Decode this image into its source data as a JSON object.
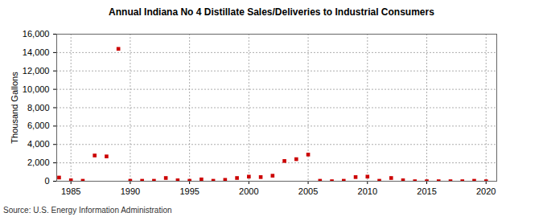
{
  "chart_data": {
    "type": "scatter",
    "title": "Annual Indiana No 4 Distillate Sales/Deliveries to Industrial Consumers",
    "source": "Source: U.S. Energy Information Administration",
    "ylabel": "Thousand Gallons",
    "x": [
      1984,
      1985,
      1986,
      1987,
      1988,
      1989,
      1990,
      1991,
      1992,
      1993,
      1994,
      1995,
      1996,
      1997,
      1998,
      1999,
      2000,
      2001,
      2002,
      2003,
      2004,
      2005,
      2006,
      2007,
      2008,
      2009,
      2010,
      2011,
      2012,
      2013,
      2014,
      2015,
      2016,
      2017,
      2018,
      2019,
      2020
    ],
    "values": [
      400,
      100,
      50,
      2800,
      2700,
      14400,
      50,
      50,
      50,
      350,
      100,
      50,
      200,
      50,
      150,
      350,
      500,
      450,
      600,
      2200,
      2400,
      2900,
      50,
      0,
      50,
      450,
      500,
      50,
      350,
      100,
      0,
      0,
      0,
      0,
      0,
      50,
      0
    ],
    "color": "#cc0000",
    "marker": "square",
    "grid": true,
    "xlim": [
      1983.8,
      2020.9
    ],
    "xticks": [
      1985,
      1990,
      1995,
      2000,
      2005,
      2010,
      2015,
      2020
    ],
    "ylim": [
      0,
      16000
    ],
    "yticks": [
      0,
      {
        "value": 2000,
        "label": "2,000"
      },
      {
        "value": 4000,
        "label": "4,000"
      },
      {
        "value": 6000,
        "label": "6,000"
      },
      {
        "value": 8000,
        "label": "8,000"
      },
      {
        "value": 10000,
        "label": "10,000"
      },
      {
        "value": 12000,
        "label": "12,000"
      },
      {
        "value": 14000,
        "label": "14,000"
      },
      {
        "value": 16000,
        "label": "16,000"
      }
    ]
  }
}
